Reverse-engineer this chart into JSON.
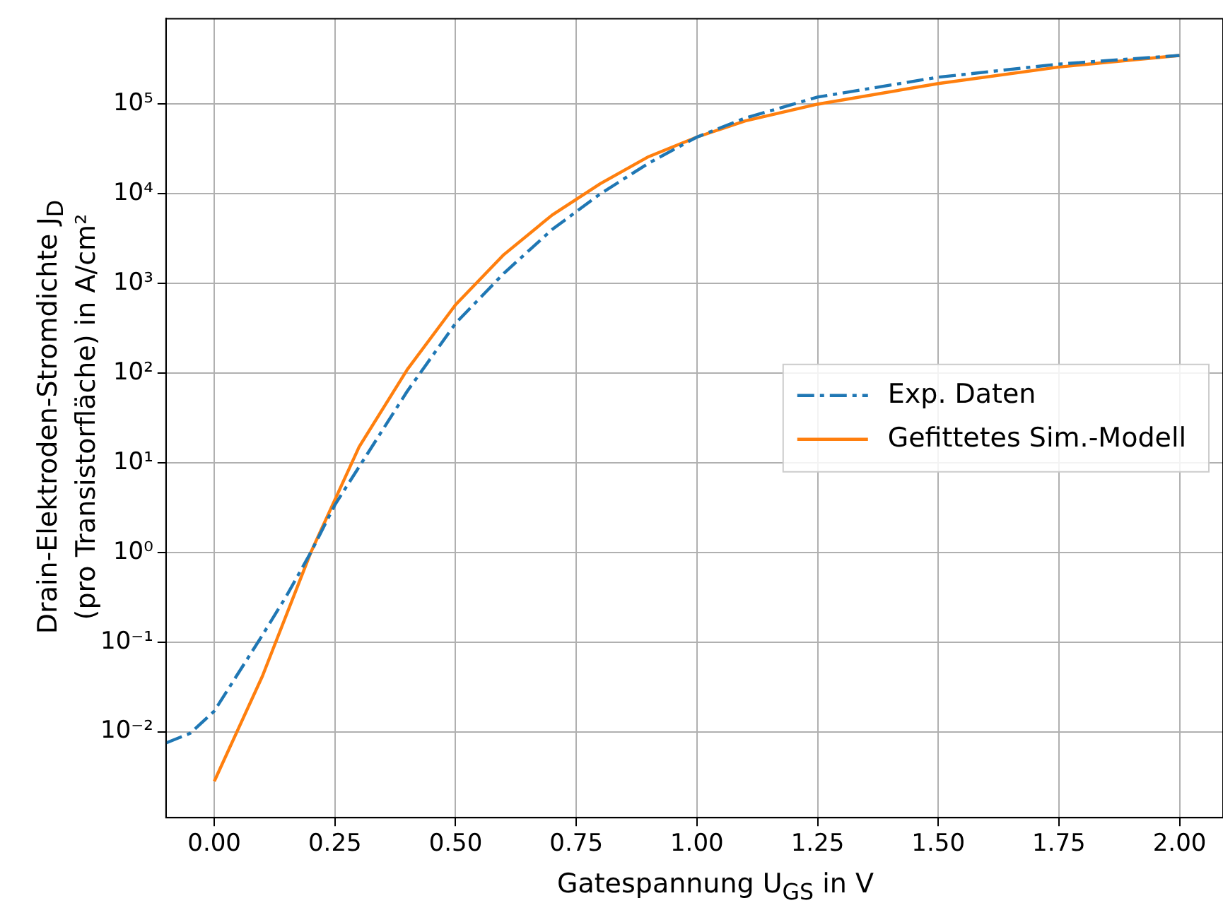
{
  "chart_data": {
    "type": "line",
    "xlabel": "Gatespannung U$_{GS}$ in V",
    "ylabel": "Drain-Elektroden-Stromdichte J$_{D}$\n(pro Transistorfläche) in A/cm²",
    "log": "y",
    "grid": true,
    "legend": "right",
    "marker": "none",
    "xlim": [
      -0.1,
      2.09
    ],
    "ylim": [
      0.0011,
      900000
    ],
    "xticks": [
      {
        "value": 0,
        "label": "0.00"
      },
      {
        "value": 0.25,
        "label": "0.25"
      },
      {
        "value": 0.5,
        "label": "0.50"
      },
      {
        "value": 0.75,
        "label": "0.75"
      },
      {
        "value": 1,
        "label": "1.00"
      },
      {
        "value": 1.25,
        "label": "1.25"
      },
      {
        "value": 1.5,
        "label": "1.50"
      },
      {
        "value": 1.75,
        "label": "1.75"
      },
      {
        "value": 2,
        "label": "2.00"
      }
    ],
    "yticks": [
      {
        "value": 0.01,
        "label": "10⁻²"
      },
      {
        "value": 0.1,
        "label": "10⁻¹"
      },
      {
        "value": 1,
        "label": "10⁰"
      },
      {
        "value": 10,
        "label": "10¹"
      },
      {
        "value": 100,
        "label": "10²"
      },
      {
        "value": 1000,
        "label": "10³"
      },
      {
        "value": 10000,
        "label": "10⁴"
      },
      {
        "value": 100000,
        "label": "10⁵"
      }
    ],
    "series": [
      {
        "name": "Exp. Daten",
        "color": "#1f77b4",
        "line_style": "dashdot",
        "x": [
          -0.1,
          -0.05,
          0,
          0.1,
          0.15,
          0.2,
          0.25,
          0.3,
          0.4,
          0.5,
          0.6,
          0.7,
          0.8,
          0.9,
          1,
          1.1,
          1.25,
          1.5,
          1.75,
          2
        ],
        "values": [
          0.0075,
          0.0096,
          0.017,
          0.12,
          0.33,
          1,
          3.4,
          9,
          63,
          360,
          1300,
          4000,
          10000,
          22000,
          43000,
          70000,
          120000,
          200000,
          280000,
          350000
        ]
      },
      {
        "name": "Gefittetes Sim.-Modell",
        "color": "#ff7f0e",
        "line_style": "solid",
        "x": [
          0,
          0.1,
          0.2,
          0.3,
          0.4,
          0.5,
          0.6,
          0.7,
          0.8,
          0.9,
          1,
          1.1,
          1.25,
          1.5,
          1.75,
          2
        ],
        "values": [
          0.0028,
          0.042,
          1,
          15,
          110,
          580,
          2100,
          5800,
          13000,
          26000,
          43000,
          65000,
          100000,
          170000,
          260000,
          350000
        ]
      }
    ]
  }
}
